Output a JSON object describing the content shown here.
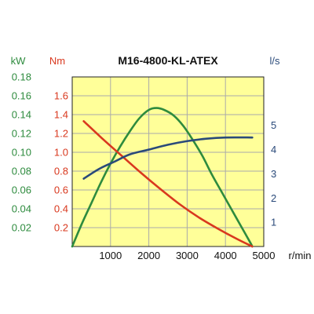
{
  "chart_data": {
    "type": "line",
    "title": "M16-4800-KL-ATEX",
    "xlabel": "r/min",
    "x_ticks": [
      "1000",
      "2000",
      "3000",
      "4000",
      "5000"
    ],
    "x_range": [
      0,
      5000
    ],
    "plot_background": "#ffff99",
    "grid": true,
    "axes": [
      {
        "id": "kw",
        "unit": "kW",
        "side": "left-outer",
        "color": "#2e8b3e",
        "ticks": [
          "0.02",
          "0.04",
          "0.06",
          "0.08",
          "0.10",
          "0.12",
          "0.14",
          "0.16",
          "0.18"
        ],
        "range": [
          0,
          0.18
        ]
      },
      {
        "id": "nm",
        "unit": "Nm",
        "side": "left-inner",
        "color": "#d9381e",
        "ticks": [
          "0.2",
          "0.4",
          "0.6",
          "0.8",
          "1.0",
          "1.2",
          "1.4",
          "1.6"
        ],
        "range": [
          0,
          1.8
        ]
      },
      {
        "id": "ls",
        "unit": "l/s",
        "side": "right",
        "color": "#2a4a7a",
        "ticks": [
          "1",
          "2",
          "3",
          "4",
          "5"
        ],
        "range": [
          0,
          7
        ]
      }
    ],
    "series": [
      {
        "axis": "kw",
        "color": "#2e8b3e",
        "x": [
          0,
          250,
          500,
          750,
          1000,
          1250,
          1500,
          1750,
          2000,
          2200,
          2400,
          2650,
          2900,
          3150,
          3400,
          3650,
          3900,
          4150,
          4400,
          4650,
          4700
        ],
        "y": [
          0,
          0.024,
          0.046,
          0.068,
          0.088,
          0.106,
          0.122,
          0.136,
          0.145,
          0.147,
          0.145,
          0.139,
          0.128,
          0.113,
          0.096,
          0.076,
          0.058,
          0.04,
          0.022,
          0.004,
          0
        ]
      },
      {
        "axis": "nm",
        "color": "#d9381e",
        "x": [
          300,
          800,
          1300,
          1800,
          2300,
          2800,
          3300,
          3800,
          4300,
          4700
        ],
        "y": [
          1.33,
          1.14,
          0.96,
          0.78,
          0.61,
          0.45,
          0.31,
          0.19,
          0.08,
          0
        ]
      },
      {
        "axis": "ls",
        "color": "#2a4a7a",
        "x": [
          300,
          700,
          1100,
          1500,
          2000,
          2500,
          3000,
          3500,
          4000,
          4700
        ],
        "y": [
          2.8,
          3.2,
          3.5,
          3.8,
          4.0,
          4.2,
          4.35,
          4.45,
          4.5,
          4.5
        ]
      }
    ]
  }
}
